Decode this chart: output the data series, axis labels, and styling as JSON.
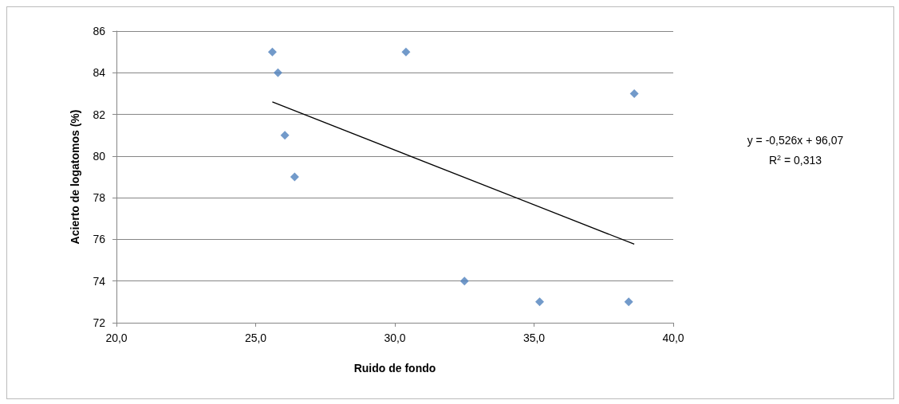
{
  "chart_data": {
    "type": "scatter",
    "xlabel": "Ruido de fondo",
    "ylabel": "Acierto de logatomos (%)",
    "series": [
      {
        "color": "#4f81bd",
        "marker": "diamond",
        "x": [
          25.6,
          25.8,
          26.05,
          26.4,
          30.4,
          32.5,
          35.2,
          38.4,
          38.6
        ],
        "values": [
          85,
          84,
          81,
          79,
          85,
          74,
          73,
          73,
          83
        ]
      },
      {
        "type": "line",
        "color": "#000000",
        "marker": "none",
        "line_style": "solid",
        "x": [
          25.6,
          38.6
        ],
        "values": [
          82.6,
          75.77
        ]
      }
    ],
    "xlim": [
      20,
      40
    ],
    "xticks": [
      {
        "value": 20,
        "label": "20,0"
      },
      {
        "value": 25,
        "label": "25,0"
      },
      {
        "value": 30,
        "label": "30,0"
      },
      {
        "value": 35,
        "label": "35,0"
      },
      {
        "value": 40,
        "label": "40,0"
      }
    ],
    "ylim": [
      72,
      86
    ],
    "yticks": [
      72,
      74,
      76,
      78,
      80,
      82,
      84,
      86
    ],
    "grid": "y",
    "annotations": [
      "y = -0,526x + 96,07",
      "R$^{2}$ = 0,313"
    ]
  }
}
